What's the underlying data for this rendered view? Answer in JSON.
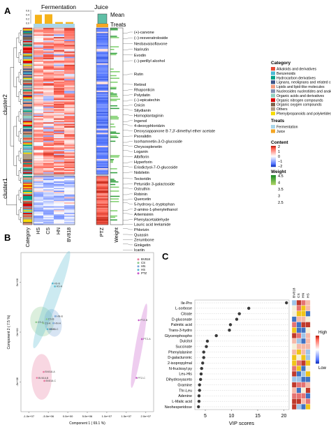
{
  "panel_letters": [
    "A",
    "B",
    "C"
  ],
  "chart_data": [
    {
      "type": "heatmap",
      "panel": "A",
      "columns": [
        "Category",
        "HS",
        "CS",
        "HN",
        "BV818",
        "PTZ",
        "Weight"
      ],
      "group_header": {
        "fermentation": "Fermentation",
        "juice": "Juice"
      },
      "annotation_rows": [
        "Mean",
        "Treats"
      ],
      "mean_bar_ticks": [
        "0.6",
        "0.4",
        "0.2",
        "0.0"
      ],
      "mean_bar_values": [
        0.55,
        0.58,
        0.1,
        0.1,
        0.6
      ],
      "row_clusters": [
        "cluster2",
        "cluster1"
      ],
      "row_labels": [
        "(+)-carvone",
        "(–)-resveratroloside",
        "Neobavaisoflavone",
        "Narirutin",
        "Evodin",
        "(−)-perillyl alcohol",
        "Rutin",
        "Retinol",
        "Rhaponticin",
        "Polydatin",
        "(–)-epicatechin",
        "Cnicin",
        "Silydianin",
        "Homoplantaginin",
        "Ingenol",
        "4-deoxyphloridzin",
        "Deoxysappanone B 7,3'-dimethyl ether acetate",
        "Psoralidin",
        "Isorhamnetin-3-O-glucoside",
        "Chrysosplenetin",
        "Loganin",
        "Albiflorin",
        "Hyperforin",
        "Eriodictyol-7-O-glucoside",
        "Nobiletin",
        "Tectoridin",
        "Petunidin 3-galactoside",
        "Ostruthin",
        "Robinin",
        "Quercetin",
        "5-hydroxy-L-tryptophan",
        "2-amino-1-phenylethanol",
        "Artemisinin",
        "Phenylacetaldehyde",
        "Lauric acid leelamide",
        "Phlorizin",
        "Quassin",
        "Zerumbone",
        "Ginkgetin",
        "Icariin"
      ],
      "legend": {
        "category_title": "Category",
        "categories": [
          {
            "name": "Alkaloids and derivatives",
            "color": "#e64b35"
          },
          {
            "name": "Benzenoids",
            "color": "#4dbbd5"
          },
          {
            "name": "Hydrocarbon derivatives",
            "color": "#00a087"
          },
          {
            "name": "Lignans, neolignans and related compounds",
            "color": "#3c5488"
          },
          {
            "name": "Lipids and lipid-like molecules",
            "color": "#f39b7f"
          },
          {
            "name": "Nucleosides nucleotides and analogues",
            "color": "#8491b4"
          },
          {
            "name": "Organic acids and derivatives",
            "color": "#91d1c2"
          },
          {
            "name": "Organic nitrogen compounds",
            "color": "#dc0000"
          },
          {
            "name": "Organic oxygen compounds",
            "color": "#7e6148"
          },
          {
            "name": "Others",
            "color": "#b09c85"
          },
          {
            "name": "Phenylpropanoids and polyketides",
            "color": "#f7dc05"
          }
        ],
        "treats_title": "Treats",
        "treats": [
          {
            "name": "Fermentation",
            "color": "#a9d6ea"
          },
          {
            "name": "Juice",
            "color": "#f5a623"
          }
        ],
        "content_title": "Content",
        "content_ticks": [
          "2",
          "1",
          "0",
          "−1",
          "−2"
        ],
        "weight_title": "Weight",
        "weight_ticks": [
          "4.5",
          "4",
          "3.5",
          "3",
          "2.5"
        ]
      }
    },
    {
      "type": "scatter",
      "panel": "B",
      "xlabel": "Component 1 ( 69.1 %)",
      "ylabel": "Component 2 ( 7.5 %)",
      "x_ticks": [
        "-1.0e+07",
        "-5.0e+06",
        "0.0e+00",
        "5.0e+06",
        "1.0e+07",
        "1.5e+07",
        "2.0e+07"
      ],
      "y_ticks": [
        "-5e+06",
        "0e+00",
        "5e+06"
      ],
      "xlim": [
        -12000000,
        22000000
      ],
      "ylim": [
        -8000000,
        8000000
      ],
      "legend_placement": "top-right",
      "series": [
        {
          "name": "BV818",
          "color": "#e8799f",
          "points": [
            {
              "label": "BV818-A",
              "x": -6200000,
              "y": -4000000
            },
            {
              "label": "BV818-B",
              "x": -7900000,
              "y": -4600000
            },
            {
              "label": "BV818-C",
              "x": -6000000,
              "y": -4900000
            }
          ]
        },
        {
          "name": "CS",
          "color": "#8bc98e",
          "points": [
            {
              "label": "CS-A",
              "x": -6300000,
              "y": 900000
            },
            {
              "label": "CS-B",
              "x": -5400000,
              "y": 1300000
            },
            {
              "label": "CS-C",
              "x": -8100000,
              "y": 1000000
            }
          ]
        },
        {
          "name": "HN",
          "color": "#7aa6d8",
          "points": [
            {
              "label": "HN-A",
              "x": -3700000,
              "y": 900000
            },
            {
              "label": "HN-B",
              "x": -3200000,
              "y": 1600000
            },
            {
              "label": "HN-C",
              "x": -4400000,
              "y": 300000
            }
          ]
        },
        {
          "name": "HS",
          "color": "#55b8cf",
          "points": [
            {
              "label": "HS-A",
              "x": -3300000,
              "y": 4600000
            },
            {
              "label": "HS-B",
              "x": -3900000,
              "y": 4900000
            },
            {
              "label": "HS-C",
              "x": -5200000,
              "y": 300000
            }
          ]
        },
        {
          "name": "PTZ",
          "color": "#c85bc9",
          "points": [
            {
              "label": "PTZ-A",
              "x": 19000000,
              "y": -700000
            },
            {
              "label": "PTZ-B",
              "x": 18200000,
              "y": 1200000
            },
            {
              "label": "PTZ-C",
              "x": 17600000,
              "y": -4600000
            }
          ]
        }
      ]
    },
    {
      "type": "scatter",
      "panel": "C",
      "subtype": "VIP dot plot",
      "xlabel": "VIP scores",
      "x_ticks": [
        5,
        10,
        15,
        20
      ],
      "xlim": [
        3,
        21
      ],
      "features": [
        "Ile-Pro",
        "L-sorbose",
        "Citrate",
        "D-gluconate",
        "Palmitic acid",
        "Trans-3-hydro",
        "Glycerophospho",
        "Dulcitol",
        "Succinate",
        "Phenylalanine",
        "D-galacturonic",
        "2-isopropylmal",
        "N-fructosyl py",
        "Leu-His",
        "Dihydroxyaceto",
        "Gramine",
        "Thr-Leu",
        "Adenine",
        "L-Malic acid",
        "Neohesperidose"
      ],
      "values": [
        20.5,
        13.3,
        11.5,
        11.0,
        9.8,
        9.6,
        7.1,
        5.4,
        5.2,
        4.7,
        4.7,
        4.5,
        4.3,
        4.2,
        4.1,
        3.9,
        3.9,
        3.8,
        3.8,
        3.7
      ],
      "heat_columns": [
        "BV818",
        "CS",
        "HN",
        "HS"
      ],
      "heat_legend_high": "High",
      "heat_legend_low": "Low"
    }
  ]
}
